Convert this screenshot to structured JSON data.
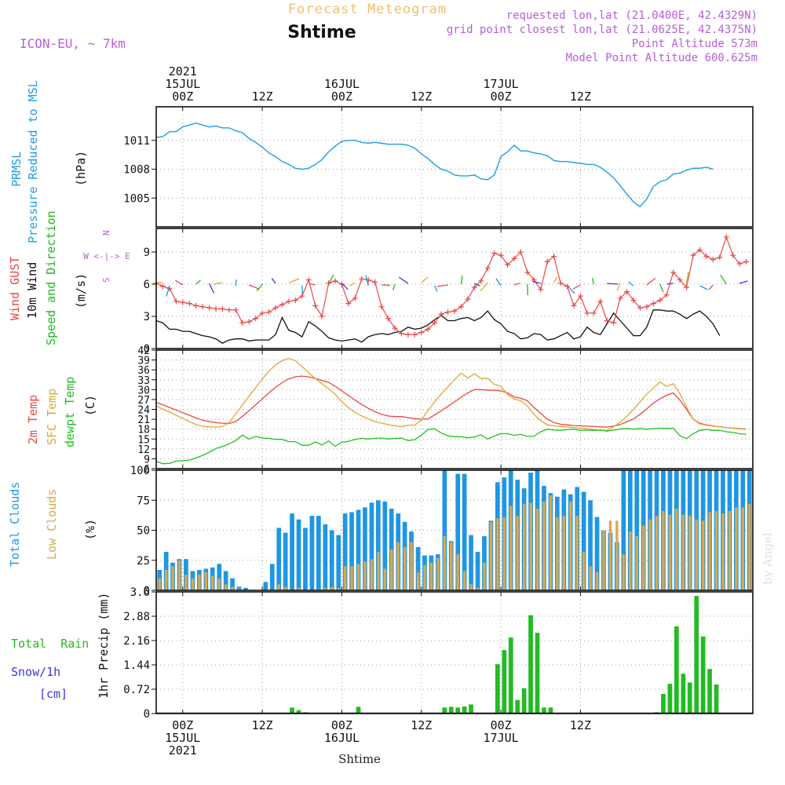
{
  "header": {
    "title": "Forecast Meteogram",
    "station": "Shtime",
    "model": "ICON-EU, ~ 7km",
    "requested": "requested lon,lat (21.0400E, 42.4329N)",
    "gridpoint": "grid point closest lon,lat (21.0625E, 42.4375N)",
    "point_alt": "Point Altitude 573m",
    "model_alt": "Model Point Altitude 600.625m",
    "watermark": "by Angel",
    "footer_station": "Shtime"
  },
  "colors": {
    "pressure": "#1e9ee6",
    "gust": "#e84848",
    "wind": "#111111",
    "dir": "#20b820",
    "temp2m": "#e84848",
    "sfc": "#e0a830",
    "dew": "#20c020",
    "total_clouds": "#1f96e3",
    "low_clouds": "#d8a850",
    "rain": "#22bb22",
    "snow": "#3a3adc",
    "purple": "#b65ed8",
    "title_orange": "#f0c070"
  },
  "time_axis": {
    "top": [
      {
        "hour": 0,
        "lines": [
          "2021",
          "15JUL",
          "00Z"
        ]
      },
      {
        "hour": 12,
        "lines": [
          "12Z"
        ]
      },
      {
        "hour": 24,
        "lines": [
          "16JUL",
          "00Z"
        ]
      },
      {
        "hour": 36,
        "lines": [
          "12Z"
        ]
      },
      {
        "hour": 48,
        "lines": [
          "17JUL",
          "00Z"
        ]
      },
      {
        "hour": 60,
        "lines": [
          "12Z"
        ]
      }
    ],
    "bottom": [
      {
        "hour": 0,
        "lines": [
          "00Z",
          "15JUL",
          "2021"
        ]
      },
      {
        "hour": 12,
        "lines": [
          "12Z"
        ]
      },
      {
        "hour": 24,
        "lines": [
          "00Z",
          "16JUL"
        ]
      },
      {
        "hour": 36,
        "lines": [
          "12Z"
        ]
      },
      {
        "hour": 48,
        "lines": [
          "00Z",
          "17JUL"
        ]
      },
      {
        "hour": 60,
        "lines": [
          "12Z"
        ]
      }
    ]
  },
  "panels": {
    "pressure": {
      "label1": "PRMSL",
      "label2": "Pressure Reduced to MSL",
      "unit": "(hPa)",
      "yticks": [
        "1005",
        "1008",
        "1011"
      ]
    },
    "wind": {
      "label1": "Wind GUST",
      "label2": "10m Wind",
      "label3": "Speed and Direction",
      "unit": "(m/s)",
      "compass": [
        "N",
        "W <-|-> E",
        "S"
      ],
      "yticks": [
        "0",
        "3",
        "6",
        "9"
      ]
    },
    "temp": {
      "label1": "2m Temp",
      "label2": "SFC Temp",
      "label3": "dewpt Temp",
      "unit": "(C)",
      "yticks": [
        "6",
        "9",
        "12",
        "15",
        "18",
        "21",
        "24",
        "27",
        "30",
        "33",
        "36",
        "39",
        "42"
      ]
    },
    "clouds": {
      "label1": "Total Clouds",
      "label2": "Low Clouds",
      "unit": "(%)",
      "yticks": [
        "0",
        "25",
        "50",
        "75",
        "100"
      ]
    },
    "precip": {
      "label1": "Total  Rain",
      "label2": "Snow/1h",
      "label3": "[cm]",
      "unit": "1hr Precip (mm)",
      "yticks": [
        "0",
        "0.72",
        "1.44",
        "2.16",
        "2.88",
        "3.6"
      ]
    }
  },
  "chart_data": [
    {
      "type": "line",
      "ylabel": "(hPa)",
      "ylim": [
        1002,
        1014.5
      ],
      "x_start_hour": -4,
      "x_step_hour": 1,
      "series": [
        {
          "name": "PRMSL",
          "values": [
            1011.3,
            1011.4,
            1011.9,
            1011.9,
            1012.4,
            1012.6,
            1012.8,
            1012.6,
            1012.4,
            1012.5,
            1012.3,
            1012.3,
            1012.0,
            1011.8,
            1011.2,
            1010.8,
            1010.3,
            1009.7,
            1009.3,
            1008.8,
            1008.5,
            1008.1,
            1008.0,
            1008.1,
            1008.5,
            1009.0,
            1009.8,
            1010.4,
            1010.9,
            1011.0,
            1011.0,
            1010.8,
            1010.7,
            1010.8,
            1010.7,
            1010.6,
            1010.6,
            1010.6,
            1010.5,
            1010.2,
            1009.6,
            1009.1,
            1008.5,
            1008.0,
            1007.8,
            1007.4,
            1007.3,
            1007.3,
            1007.4,
            1007.0,
            1006.9,
            1007.4,
            1009.3,
            1009.8,
            1010.5,
            1009.9,
            1009.9,
            1009.7,
            1009.6,
            1009.4,
            1008.9,
            1008.8,
            1008.8,
            1008.7,
            1008.6,
            1008.5,
            1008.5,
            1008.2,
            1007.7,
            1007.1,
            1006.3,
            1005.4,
            1004.6,
            1004.1,
            1004.9,
            1006.2,
            1006.7,
            1006.9,
            1007.5,
            1007.6,
            1007.9,
            1008.1,
            1008.1,
            1008.2,
            1008.0
          ]
        }
      ]
    },
    {
      "type": "line",
      "ylabel": "(m/s)",
      "ylim": [
        0,
        11.2
      ],
      "x_start_hour": -4,
      "x_step_hour": 1,
      "series": [
        {
          "name": "Wind GUST",
          "values": [
            6.1,
            5.8,
            5.6,
            4.4,
            4.3,
            4.2,
            4.0,
            3.9,
            3.8,
            3.7,
            3.7,
            3.6,
            3.6,
            2.4,
            2.5,
            2.8,
            3.3,
            3.4,
            3.8,
            4.1,
            4.4,
            4.5,
            4.9,
            6.4,
            4.0,
            3.0,
            6.1,
            6.3,
            6.0,
            4.2,
            4.7,
            6.5,
            6.4,
            6.2,
            3.9,
            2.8,
            1.9,
            1.4,
            1.3,
            1.3,
            1.5,
            1.8,
            2.4,
            3.2,
            3.4,
            3.5,
            3.9,
            4.6,
            5.7,
            6.3,
            7.5,
            8.9,
            8.7,
            7.8,
            8.4,
            9.0,
            7.1,
            6.4,
            5.5,
            8.1,
            8.6,
            6.1,
            5.8,
            4.0,
            4.9,
            3.3,
            3.3,
            4.4,
            2.6,
            2.4,
            4.7,
            5.3,
            4.5,
            3.8,
            3.9,
            4.2,
            4.5,
            5.0,
            7.1,
            6.4,
            5.7,
            8.7,
            9.2,
            8.6,
            8.3,
            8.5,
            10.4,
            8.7,
            7.9,
            8.1
          ]
        },
        {
          "name": "10m Wind",
          "values": [
            2.6,
            2.4,
            1.8,
            1.8,
            1.6,
            1.6,
            1.4,
            1.2,
            1.1,
            0.9,
            0.5,
            0.8,
            0.9,
            0.9,
            0.7,
            0.8,
            0.8,
            0.8,
            1.3,
            2.9,
            1.7,
            1.5,
            1.1,
            2.5,
            2.1,
            1.6,
            1.0,
            0.8,
            0.7,
            0.8,
            0.9,
            0.6,
            1.1,
            1.3,
            1.4,
            1.3,
            1.5,
            1.6,
            2.0,
            1.8,
            1.9,
            2.2,
            2.7,
            3.1,
            2.6,
            2.6,
            2.8,
            2.9,
            2.6,
            2.9,
            3.5,
            2.7,
            2.3,
            1.6,
            1.4,
            0.9,
            1.0,
            1.4,
            1.3,
            0.8,
            0.9,
            1.2,
            1.5,
            0.9,
            1.1,
            2.0,
            1.5,
            1.3,
            2.3,
            3.3,
            2.6,
            1.9,
            1.2,
            1.2,
            2.0,
            3.6,
            3.6,
            3.5,
            3.5,
            3.2,
            2.8,
            3.2,
            3.5,
            3.0,
            2.3,
            1.2
          ]
        }
      ]
    },
    {
      "type": "line",
      "ylabel": "(C)",
      "ylim": [
        6,
        42
      ],
      "x_start_hour": -4,
      "x_step_hour": 1,
      "series": [
        {
          "name": "2m Temp",
          "values": [
            26.1,
            25.4,
            24.6,
            23.8,
            23.0,
            22.2,
            21.4,
            20.7,
            20.3,
            20.0,
            19.8,
            19.7,
            20.3,
            21.9,
            23.6,
            25.4,
            27.2,
            29.0,
            30.7,
            32.1,
            33.3,
            33.9,
            34.1,
            33.9,
            33.4,
            32.8,
            32.2,
            31.0,
            29.6,
            28.2,
            26.8,
            25.5,
            24.3,
            23.3,
            22.5,
            22.0,
            21.8,
            21.8,
            21.5,
            21.2,
            21.0,
            21.1,
            22.3,
            23.6,
            24.9,
            26.3,
            27.7,
            29.0,
            30.0,
            30.0,
            29.8,
            29.8,
            29.6,
            29.0,
            27.8,
            27.4,
            26.6,
            24.6,
            22.8,
            21.0,
            20.0,
            19.5,
            19.3,
            19.1,
            19.0,
            18.9,
            18.8,
            18.7,
            18.6,
            18.9,
            19.4,
            20.2,
            21.1,
            22.5,
            24.2,
            25.9,
            27.2,
            28.3,
            29.0,
            26.8,
            24.0,
            21.0,
            19.8,
            19.3,
            19.0,
            18.7,
            18.5,
            18.3,
            18.2,
            18.0
          ]
        },
        {
          "name": "SFC Temp",
          "values": [
            25.1,
            24.1,
            23.2,
            22.2,
            21.2,
            20.3,
            19.4,
            18.9,
            18.7,
            18.6,
            18.8,
            20.0,
            22.6,
            25.3,
            28.0,
            30.6,
            33.2,
            35.6,
            37.5,
            38.8,
            39.5,
            38.8,
            37.0,
            35.1,
            33.4,
            31.8,
            30.3,
            28.6,
            26.3,
            24.5,
            23.1,
            22.0,
            21.1,
            20.3,
            19.8,
            19.4,
            19.0,
            18.8,
            19.2,
            19.2,
            20.8,
            23.7,
            26.3,
            28.7,
            30.9,
            33.0,
            35.0,
            33.5,
            34.8,
            33.4,
            33.5,
            31.6,
            31.0,
            28.5,
            27.2,
            26.6,
            25.0,
            22.5,
            20.6,
            19.3,
            19.0,
            18.8,
            18.7,
            18.5,
            18.3,
            18.1,
            17.9,
            17.6,
            17.6,
            18.7,
            20.1,
            21.9,
            24.0,
            26.3,
            28.6,
            30.5,
            32.3,
            31.0,
            31.8,
            28.8,
            24.6,
            21.0,
            19.6,
            19.2,
            18.9,
            18.7,
            18.5,
            18.3,
            18.1,
            17.9
          ]
        },
        {
          "name": "dewpt Temp",
          "values": [
            8.2,
            7.5,
            7.6,
            8.3,
            8.4,
            8.6,
            9.3,
            10.0,
            11.0,
            12.1,
            12.7,
            13.5,
            14.5,
            16.2,
            15.0,
            15.8,
            15.3,
            15.2,
            14.9,
            14.9,
            14.2,
            14.2,
            13.1,
            13.1,
            14.1,
            13.2,
            14.4,
            12.8,
            14.0,
            14.3,
            14.9,
            15.2,
            15.0,
            15.2,
            15.3,
            15.0,
            15.2,
            15.3,
            14.5,
            14.8,
            16.2,
            17.9,
            18.1,
            16.8,
            16.0,
            15.7,
            15.7,
            15.4,
            15.6,
            16.3,
            15.0,
            15.9,
            16.6,
            16.6,
            16.1,
            16.4,
            15.8,
            15.9,
            17.2,
            18.0,
            17.7,
            17.6,
            17.9,
            18.0,
            17.6,
            17.7,
            17.6,
            17.7,
            17.4,
            17.7,
            18.0,
            18.2,
            18.0,
            18.2,
            18.0,
            18.1,
            18.3,
            18.2,
            18.3,
            16.0,
            15.1,
            16.6,
            17.6,
            17.9,
            17.6,
            17.6,
            17.2,
            17.0,
            16.6,
            16.4
          ]
        }
      ]
    },
    {
      "type": "bar",
      "ylabel": "(%)",
      "ylim": [
        0,
        100
      ],
      "x_start_hour": -4,
      "x_step_hour": 1,
      "series": [
        {
          "name": "Total Clouds",
          "values": [
            17,
            32,
            23,
            26,
            26,
            16,
            17,
            18,
            19,
            22,
            16,
            10,
            3,
            2,
            0,
            0,
            7,
            22,
            52,
            48,
            64,
            59,
            52,
            62,
            62,
            55,
            50,
            46,
            64,
            65,
            67,
            69,
            73,
            75,
            74,
            68,
            64,
            57,
            49,
            36,
            29,
            29,
            30,
            100,
            41,
            97,
            97,
            46,
            32,
            45,
            58,
            90,
            94,
            100,
            92,
            85,
            98,
            100,
            87,
            81,
            78,
            84,
            80,
            86,
            82,
            75,
            61,
            50,
            48,
            40,
            100,
            100,
            100,
            100,
            100,
            100,
            100,
            100,
            100,
            100,
            100,
            100,
            100,
            100,
            100,
            100,
            100,
            100,
            100,
            100
          ]
        },
        {
          "name": "Low Clouds",
          "values": [
            10,
            17,
            20,
            25,
            13,
            10,
            13,
            15,
            12,
            10,
            5,
            3,
            1,
            0,
            0,
            0,
            0,
            0,
            5,
            3,
            0,
            2,
            0,
            0,
            1,
            2,
            3,
            2,
            20,
            20,
            22,
            24,
            26,
            32,
            18,
            34,
            40,
            36,
            40,
            15,
            21,
            23,
            27,
            45,
            40,
            30,
            16,
            5,
            2,
            23,
            57,
            60,
            61,
            70,
            62,
            72,
            73,
            68,
            74,
            79,
            61,
            62,
            74,
            62,
            32,
            20,
            15,
            50,
            58,
            58,
            30,
            49,
            45,
            54,
            59,
            62,
            66,
            63,
            68,
            63,
            62,
            59,
            58,
            65,
            66,
            64,
            66,
            69,
            69,
            72
          ]
        }
      ]
    },
    {
      "type": "bar",
      "ylabel": "1hr Precip (mm)",
      "ylim": [
        0,
        3.6
      ],
      "x_start_hour": -4,
      "x_step_hour": 1,
      "series": [
        {
          "name": "Total Rain",
          "values": [
            0,
            0,
            0,
            0,
            0,
            0,
            0,
            0,
            0,
            0,
            0,
            0,
            0,
            0,
            0,
            0,
            0,
            0,
            0,
            0,
            0.18,
            0.1,
            0.04,
            0,
            0,
            0,
            0,
            0,
            0,
            0,
            0.2,
            0,
            0,
            0,
            0,
            0,
            0,
            0,
            0,
            0,
            0,
            0,
            0,
            0.18,
            0.2,
            0.18,
            0.21,
            0.27,
            0,
            0,
            0,
            1.46,
            1.88,
            2.25,
            0.4,
            0.75,
            2.91,
            2.39,
            0.18,
            0.18,
            0,
            0,
            0,
            0,
            0,
            0,
            0,
            0,
            0,
            0,
            0,
            0,
            0,
            0,
            0,
            0.04,
            0.58,
            0.88,
            2.58,
            1.18,
            0.92,
            3.48,
            2.28,
            1.32,
            0.86
          ]
        }
      ]
    }
  ]
}
